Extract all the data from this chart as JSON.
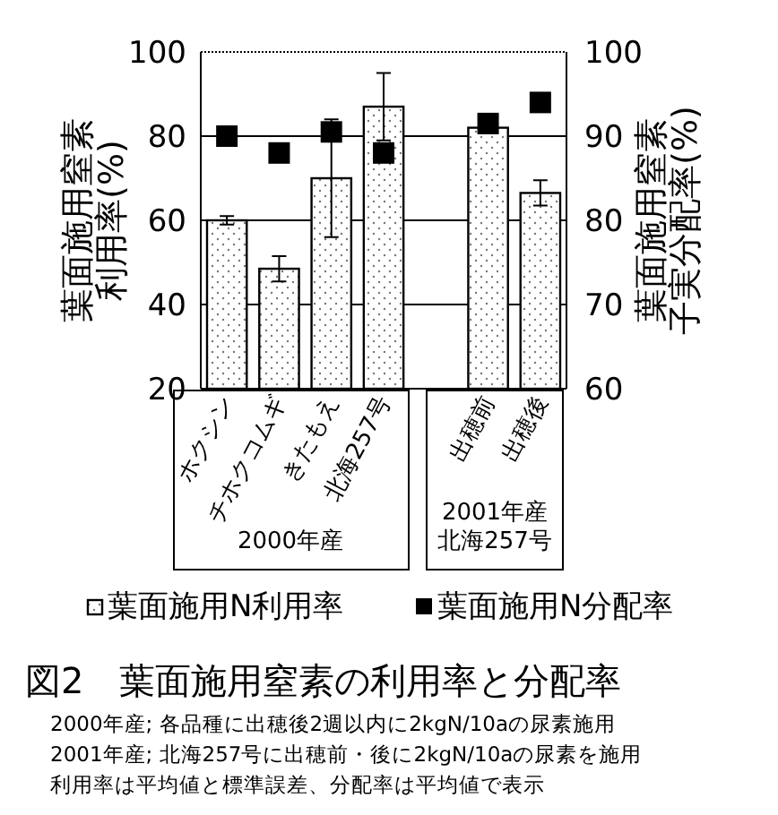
{
  "chart_data": {
    "type": "bar",
    "title": "図2　葉面施用窒素の利用率と分配率",
    "categories": [
      "ホクシン",
      "チホクコムギ",
      "きたもえ",
      "北海257号",
      null,
      "出穂前",
      "出穂後"
    ],
    "series": [
      {
        "name": "葉面施用N利用率",
        "color": "#000000",
        "values": [
          60,
          48.5,
          70,
          87,
          null,
          82,
          66.5
        ],
        "errors": [
          1,
          3,
          14,
          8,
          null,
          null,
          3
        ]
      },
      {
        "name": "葉面施用N分配率",
        "type": "scatter",
        "axis": "y2",
        "marker": "square",
        "color": "#000000",
        "values": [
          90,
          88,
          90.5,
          88,
          null,
          91.5,
          94
        ]
      }
    ],
    "ylabel": "葉面施用窒素利用率(%)",
    "y2label": "葉面施用窒素子実分配率(%)",
    "ylim": [
      20,
      100
    ],
    "yticks": [
      20,
      40,
      60,
      80,
      100
    ],
    "y2lim": [
      60,
      100
    ],
    "y2ticks": [
      60,
      70,
      80,
      90,
      100
    ],
    "grid": "y",
    "legend": "bottom",
    "annotations": [
      "2000年産",
      "2001年産北海257号",
      "2000年産; 各品種に出穂後2週以内に2kgN/10aの尿素施用",
      "2001年産; 北海257号に出穂前・後に2kgN/10aの尿素を施用",
      "利用率は平均値と標準誤差、分配率は平均値で表示"
    ]
  }
}
